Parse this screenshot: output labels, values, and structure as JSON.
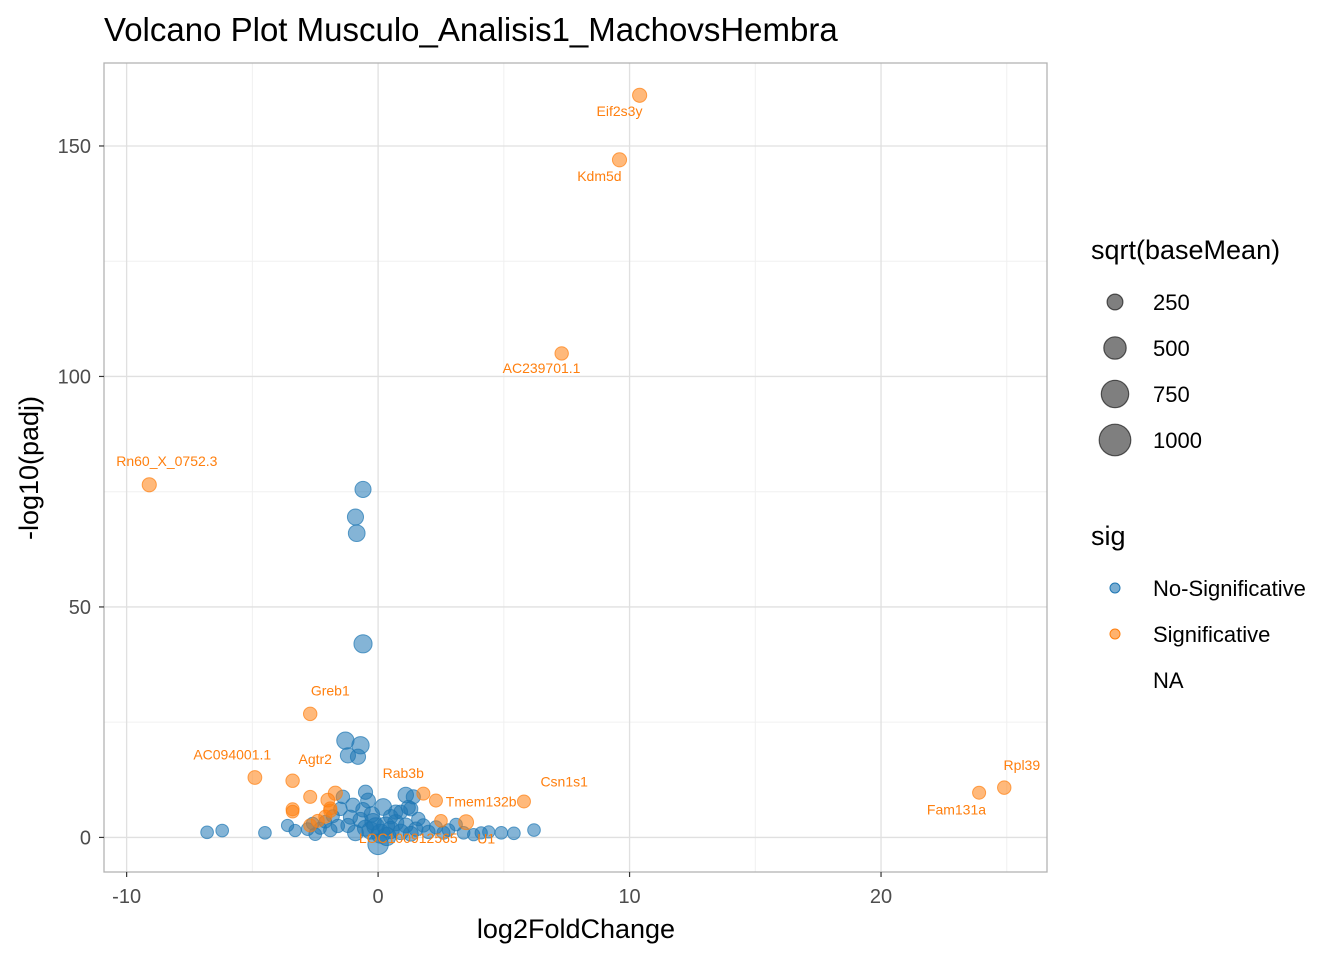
{
  "chart_data": {
    "type": "scatter",
    "title": "Volcano Plot Musculo_Analisis1_MachovsHembra",
    "xlabel": "log2FoldChange",
    "ylabel": "-log10(padj)",
    "xlim": [
      -10.9,
      26.6
    ],
    "ylim": [
      -7.5,
      168
    ],
    "x_ticks": [
      -10,
      0,
      10,
      20
    ],
    "y_ticks": [
      0,
      50,
      100,
      150
    ],
    "x_tick_labels": [
      "-10",
      "0",
      "10",
      "20"
    ],
    "y_tick_labels": [
      "0",
      "50",
      "100",
      "150"
    ],
    "grid": true,
    "colors": {
      "No-Significative": "#1f77b4",
      "Significative": "#ff7f0e"
    },
    "size_legend": {
      "title": "sqrt(baseMean)",
      "entries": [
        {
          "label": "250",
          "value": 250
        },
        {
          "label": "500",
          "value": 500
        },
        {
          "label": "750",
          "value": 750
        },
        {
          "label": "1000",
          "value": 1000
        }
      ]
    },
    "color_legend": {
      "title": "sig",
      "entries": [
        {
          "label": "No-Significative",
          "key": "No-Significative"
        },
        {
          "label": "Significative",
          "key": "Significative"
        },
        {
          "label": "NA",
          "key": "NA"
        }
      ]
    },
    "series": [
      {
        "name": "No-Significative",
        "points": [
          [
            -0.6,
            75.5,
            260
          ],
          [
            -0.9,
            69.5,
            260
          ],
          [
            -0.85,
            66,
            280
          ],
          [
            -0.6,
            42,
            330
          ],
          [
            -1.3,
            21,
            300
          ],
          [
            -0.7,
            20,
            300
          ],
          [
            -1.2,
            17.8,
            230
          ],
          [
            -0.8,
            17.5,
            230
          ],
          [
            -0.5,
            9.8,
            200
          ],
          [
            -0.4,
            8,
            220
          ],
          [
            -1.0,
            7,
            200
          ],
          [
            -1.4,
            8.8,
            180
          ],
          [
            1.1,
            9.2,
            240
          ],
          [
            1.4,
            8.8,
            200
          ],
          [
            0.2,
            6.6,
            280
          ],
          [
            1.2,
            6.5,
            200
          ],
          [
            1.3,
            6.2,
            200
          ],
          [
            0.9,
            5.5,
            190
          ],
          [
            1.6,
            4.0,
            180
          ],
          [
            0.5,
            4.5,
            210
          ],
          [
            -6.8,
            1.1,
            160
          ],
          [
            -6.2,
            1.5,
            160
          ],
          [
            -4.5,
            1.0,
            160
          ],
          [
            -3.6,
            2.6,
            150
          ],
          [
            -3.3,
            1.5,
            150
          ],
          [
            -2.8,
            1.8,
            160
          ],
          [
            -2.6,
            3.0,
            160
          ],
          [
            -2.3,
            2.0,
            150
          ],
          [
            -2.1,
            3.4,
            160
          ],
          [
            -1.9,
            1.6,
            180
          ],
          [
            -1.6,
            2.5,
            180
          ],
          [
            -1.8,
            4.6,
            170
          ],
          [
            -1.2,
            2.6,
            200
          ],
          [
            -1.1,
            4.4,
            200
          ],
          [
            -0.9,
            1.0,
            250
          ],
          [
            -0.7,
            3.8,
            230
          ],
          [
            -0.5,
            2.0,
            260
          ],
          [
            -0.3,
            1.5,
            300
          ],
          [
            -0.2,
            3.4,
            270
          ],
          [
            0.0,
            -1.5,
            420
          ],
          [
            0.1,
            0.8,
            360
          ],
          [
            0.3,
            2.5,
            320
          ],
          [
            0.5,
            1.6,
            300
          ],
          [
            0.7,
            3.2,
            260
          ],
          [
            0.9,
            1.2,
            240
          ],
          [
            1.1,
            2.6,
            220
          ],
          [
            1.3,
            0.8,
            220
          ],
          [
            1.5,
            1.8,
            200
          ],
          [
            1.8,
            2.6,
            180
          ],
          [
            2.0,
            1.2,
            180
          ],
          [
            2.3,
            2.2,
            170
          ],
          [
            2.6,
            1.0,
            170
          ],
          [
            2.8,
            1.6,
            160
          ],
          [
            3.1,
            2.8,
            160
          ],
          [
            3.4,
            1.0,
            160
          ],
          [
            3.8,
            0.6,
            150
          ],
          [
            4.1,
            1.0,
            150
          ],
          [
            4.4,
            1.2,
            150
          ],
          [
            4.9,
            1.0,
            160
          ],
          [
            5.4,
            0.9,
            160
          ],
          [
            6.2,
            1.6,
            160
          ],
          [
            -2.5,
            0.7,
            160
          ],
          [
            -0.6,
            6.0,
            210
          ],
          [
            0.7,
            5.5,
            200
          ],
          [
            -1.5,
            6.2,
            180
          ],
          [
            -0.25,
            5.0,
            240
          ],
          [
            0.35,
            0.2,
            330
          ],
          [
            -0.1,
            2.4,
            300
          ]
        ]
      },
      {
        "name": "Significative",
        "points": [
          [
            10.4,
            161,
            200
          ],
          [
            9.6,
            147,
            200
          ],
          [
            7.3,
            105,
            180
          ],
          [
            -9.1,
            76.5,
            200
          ],
          [
            -2.7,
            26.8,
            180
          ],
          [
            -4.9,
            13,
            190
          ],
          [
            -3.4,
            12.3,
            180
          ],
          [
            24.9,
            10.8,
            180
          ],
          [
            23.9,
            9.7,
            170
          ],
          [
            5.8,
            7.8,
            170
          ],
          [
            2.3,
            8.0,
            170
          ],
          [
            1.8,
            9.5,
            170
          ],
          [
            -1.7,
            9.6,
            200
          ],
          [
            -2.0,
            8.1,
            190
          ],
          [
            -2.7,
            8.8,
            170
          ],
          [
            -3.4,
            6.1,
            170
          ],
          [
            -1.9,
            6.3,
            170
          ],
          [
            -2.1,
            4.5,
            170
          ],
          [
            -2.4,
            3.6,
            170
          ],
          [
            -2.7,
            2.6,
            170
          ],
          [
            3.5,
            3.3,
            220
          ],
          [
            2.5,
            3.6,
            160
          ],
          [
            -3.4,
            5.6,
            160
          ],
          [
            -1.9,
            5.8,
            180
          ]
        ]
      }
    ],
    "labels": [
      {
        "text": "Eif2s3y",
        "x": 9.6,
        "y": 156.5,
        "color": "#ff7f0e"
      },
      {
        "text": "Kdm5d",
        "x": 8.8,
        "y": 142.4,
        "color": "#ff7f0e"
      },
      {
        "text": "AC239701.1",
        "x": 6.5,
        "y": 100.8,
        "color": "#ff7f0e"
      },
      {
        "text": "Rn60_X_0752.3",
        "x": -8.4,
        "y": 80.6,
        "color": "#ff7f0e"
      },
      {
        "text": "Greb1",
        "x": -1.9,
        "y": 30.8,
        "color": "#ff7f0e"
      },
      {
        "text": "AC094001.1",
        "x": -5.8,
        "y": 16.9,
        "color": "#ff7f0e"
      },
      {
        "text": "Agtr2",
        "x": -2.5,
        "y": 15.9,
        "color": "#ff7f0e"
      },
      {
        "text": "Rab3b",
        "x": 1.0,
        "y": 12.9,
        "color": "#ff7f0e"
      },
      {
        "text": "Csn1s1",
        "x": 7.4,
        "y": 11.0,
        "color": "#ff7f0e"
      },
      {
        "text": "Tmem132b",
        "x": 4.1,
        "y": 6.7,
        "color": "#ff7f0e"
      },
      {
        "text": "Rpl39",
        "x": 25.6,
        "y": 14.6,
        "color": "#ff7f0e"
      },
      {
        "text": "Fam131a",
        "x": 23.0,
        "y": 5.0,
        "color": "#ff7f0e"
      },
      {
        "text": "LOC100912565",
        "x": 1.2,
        "y": -1.2,
        "color": "#ff7f0e"
      },
      {
        "text": "U1",
        "x": 4.3,
        "y": -1.3,
        "color": "#ff7f0e"
      }
    ]
  }
}
